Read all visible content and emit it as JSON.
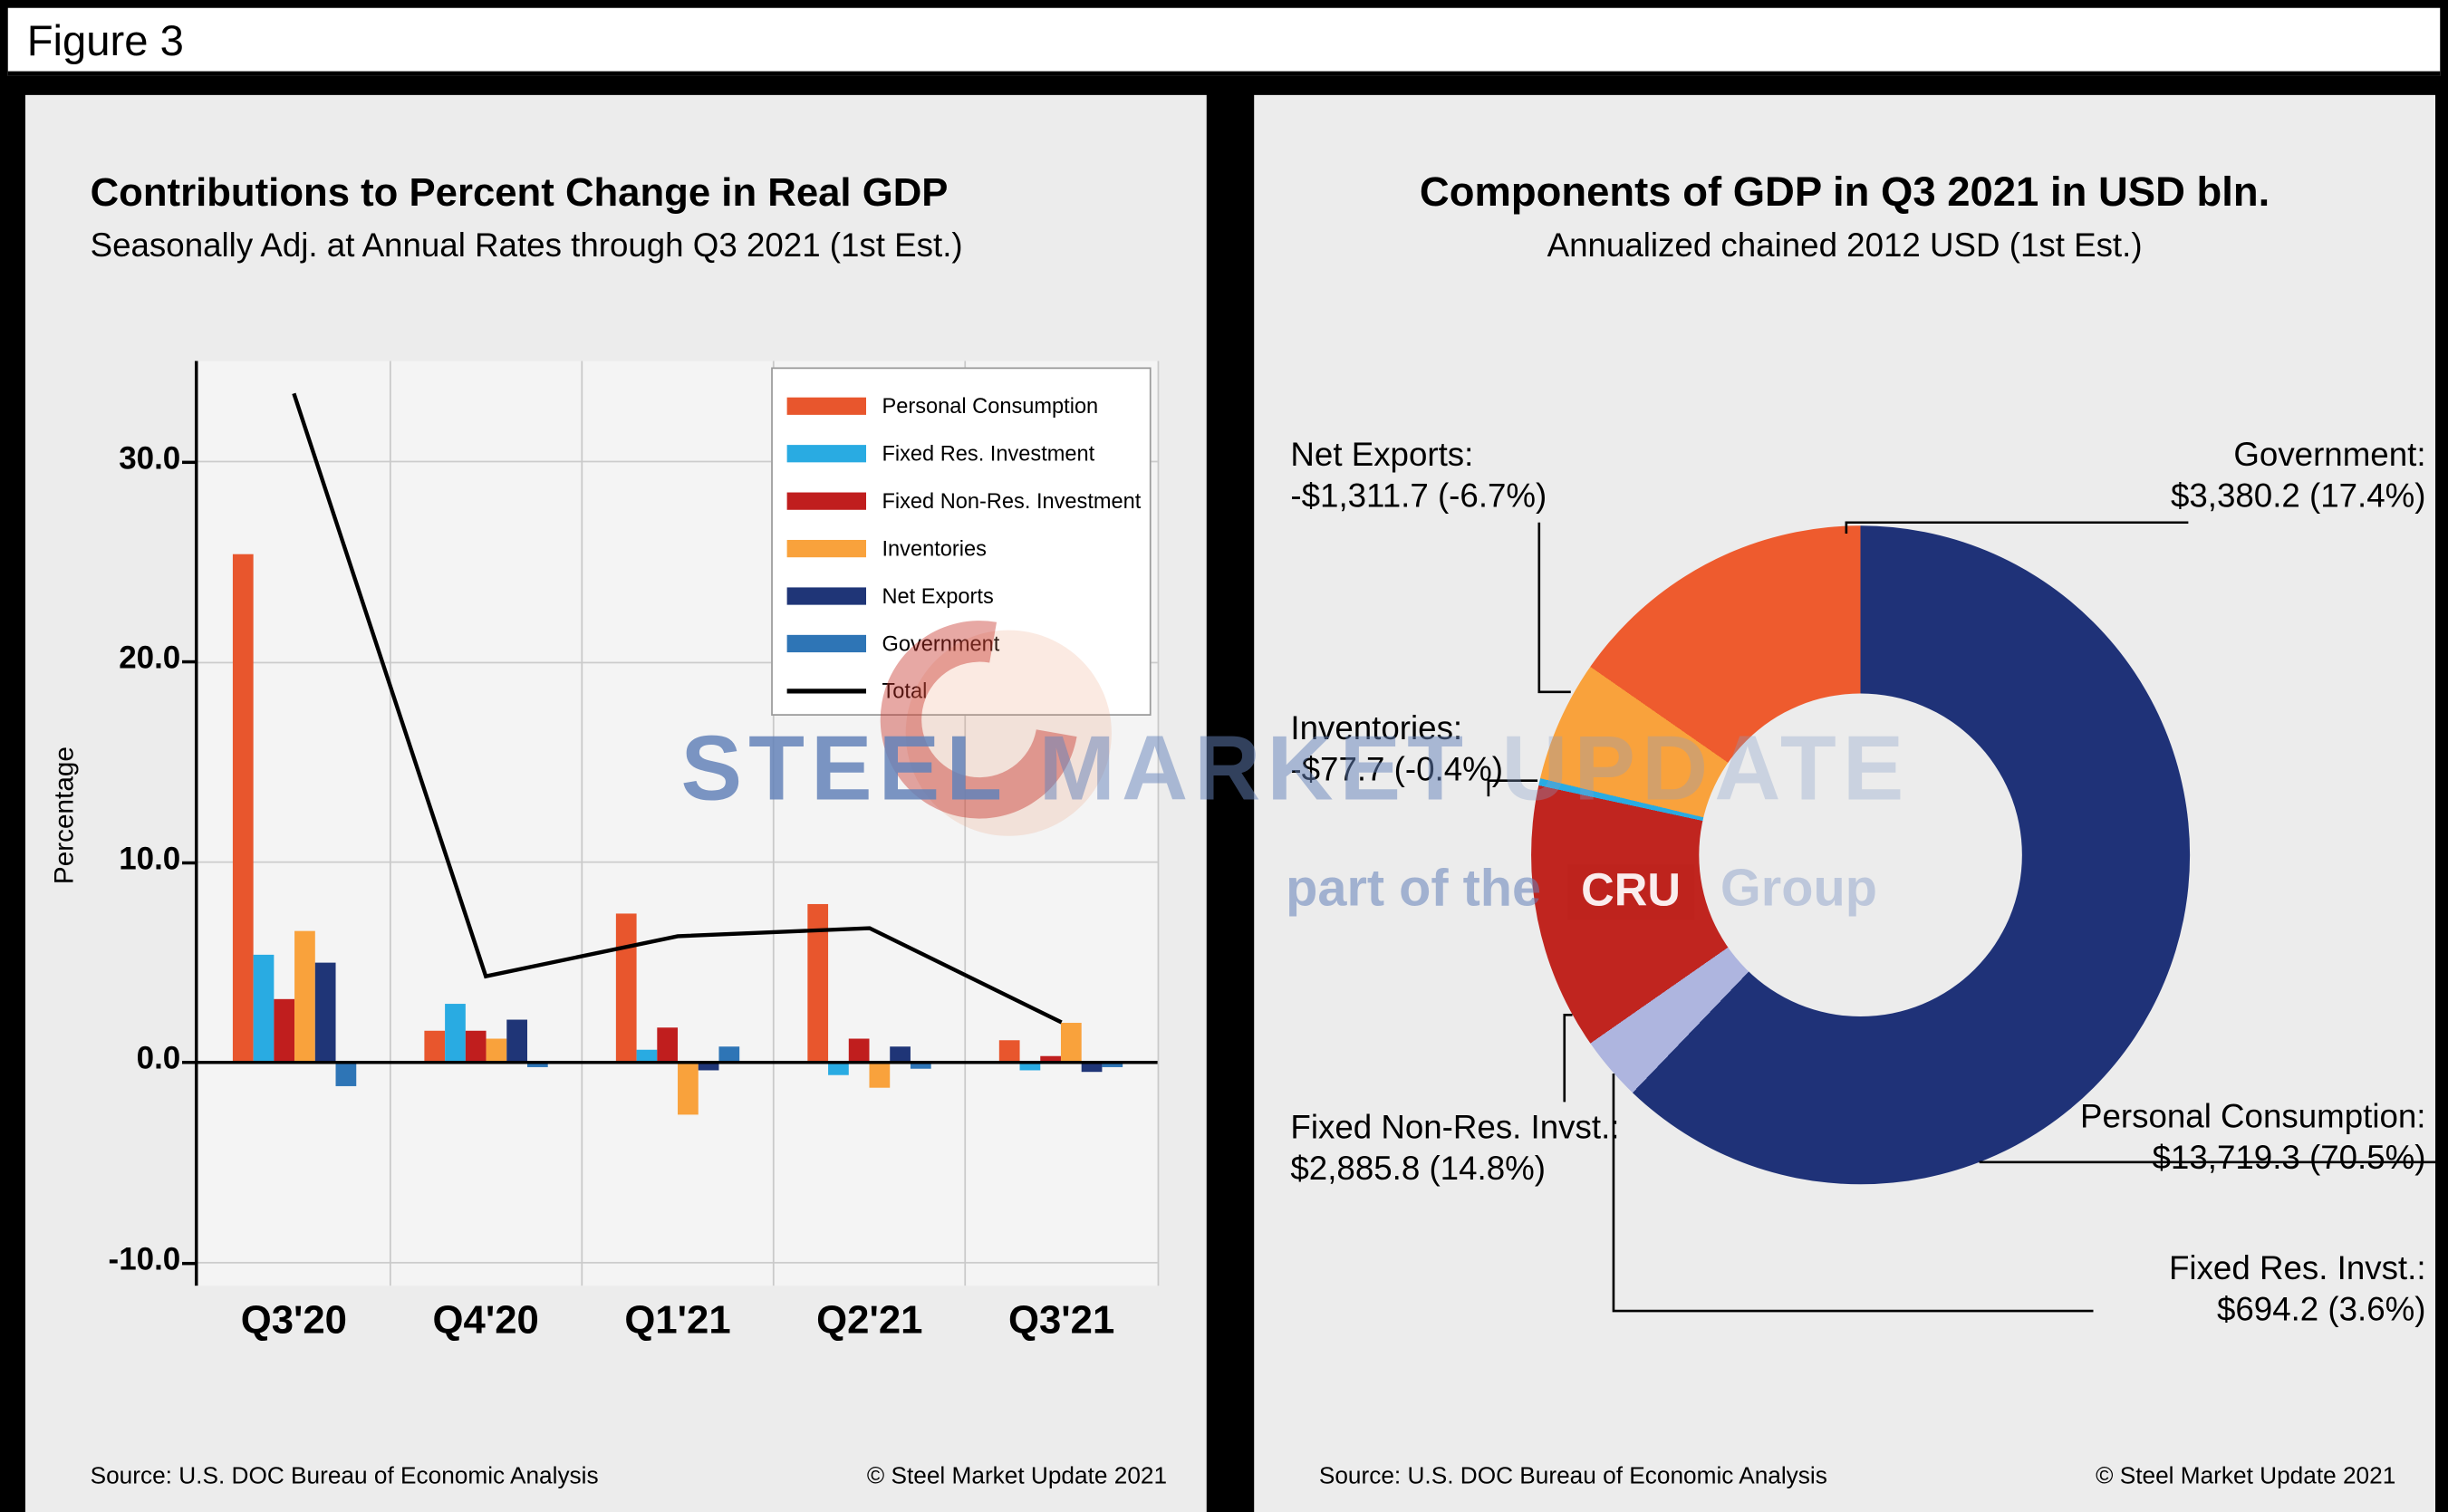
{
  "figure_label": "Figure 3",
  "left_panel": {
    "title": "Contributions to Percent Change in Real GDP",
    "subtitle": "Seasonally Adj. at Annual Rates through Q3 2021 (1st Est.)",
    "y_axis_label": "Percentage",
    "source": "Source: U.S. DOC Bureau of Economic Analysis",
    "copyright": "© Steel Market Update 2021"
  },
  "right_panel": {
    "title": "Components of GDP in Q3 2021 in USD bln.",
    "subtitle": "Annualized chained 2012 USD (1st Est.)",
    "source": "Source: U.S. DOC Bureau of Economic Analysis",
    "copyright": "© Steel Market Update 2021"
  },
  "watermark": {
    "word1": "STEEL",
    "word2": "MARKET",
    "word3": "UPDATE",
    "part_of": "part of the",
    "cru": "CRU",
    "group": "Group",
    "accent_red": "#C1272D",
    "accent_blue": "#6482B9"
  },
  "chart_data": [
    {
      "type": "bar",
      "title": "Contributions to Percent Change in Real GDP",
      "subtitle": "Seasonally Adj. at Annual Rates through Q3 2021 (1st Est.)",
      "ylabel": "Percentage",
      "ylim": [
        -11,
        35
      ],
      "yticks": [
        -10,
        0,
        10,
        20,
        30
      ],
      "grid": true,
      "legend_position": "top-right",
      "categories": [
        "Q3'20",
        "Q4'20",
        "Q1'21",
        "Q2'21",
        "Q3'21"
      ],
      "series": [
        {
          "name": "Personal Consumption",
          "color": "#E8562D",
          "values": [
            25.4,
            1.6,
            7.4,
            7.9,
            1.1
          ]
        },
        {
          "name": "Fixed Res. Investment",
          "color": "#29ABE2",
          "values": [
            5.4,
            2.9,
            0.6,
            -0.6,
            -0.4
          ]
        },
        {
          "name": "Fixed Non-Res. Investment",
          "color": "#C01E1E",
          "values": [
            3.2,
            1.6,
            1.7,
            1.2,
            0.3
          ]
        },
        {
          "name": "Inventories",
          "color": "#F9A23C",
          "values": [
            6.6,
            1.2,
            -2.6,
            -1.3,
            2.0
          ]
        },
        {
          "name": "Net Exports",
          "color": "#1F3577",
          "values": [
            5.0,
            2.1,
            -0.4,
            0.8,
            -0.5
          ]
        },
        {
          "name": "Government",
          "color": "#2E75B6",
          "values": [
            -1.2,
            -0.2,
            0.8,
            -0.3,
            -0.2
          ]
        }
      ],
      "line_series": {
        "name": "Total",
        "color": "#000000",
        "values": [
          33.4,
          4.3,
          6.3,
          6.7,
          2.0
        ]
      }
    },
    {
      "type": "pie",
      "title": "Components of GDP in Q3 2021 in USD bln.",
      "subtitle": "Annualized chained 2012 USD (1st Est.)",
      "units": "USD bln, annualized chained 2012 USD",
      "segments": [
        {
          "name": "Personal Consumption",
          "label": "Personal Consumption:",
          "value": 13719.3,
          "pct": 70.5,
          "value_label": "$13,719.3 (70.5%)",
          "color": "#1F3278"
        },
        {
          "name": "Fixed Res. Invst.",
          "label": "Fixed Res. Invst.:",
          "value": 694.2,
          "pct": 3.6,
          "value_label": "$694.2 (3.6%)",
          "color": "#AEB5DF"
        },
        {
          "name": "Fixed Non-Res. Invst.",
          "label": "Fixed Non-Res. Invst.:",
          "value": 2885.8,
          "pct": 14.8,
          "value_label": "$2,885.8 (14.8%)",
          "color": "#C0251F"
        },
        {
          "name": "Inventories",
          "label": "Inventories:",
          "value": -77.7,
          "pct": -0.4,
          "value_label": "-$77.7 (-0.4%)",
          "color": "#29ABE2"
        },
        {
          "name": "Net Exports",
          "label": "Net Exports:",
          "value": -1311.7,
          "pct": -6.7,
          "value_label": "-$1,311.7 (-6.7%)",
          "color": "#F9A23C"
        },
        {
          "name": "Government",
          "label": "Government:",
          "value": 3380.2,
          "pct": 17.4,
          "value_label": "$3,380.2 (17.4%)",
          "color": "#EE5B2E"
        }
      ]
    }
  ]
}
